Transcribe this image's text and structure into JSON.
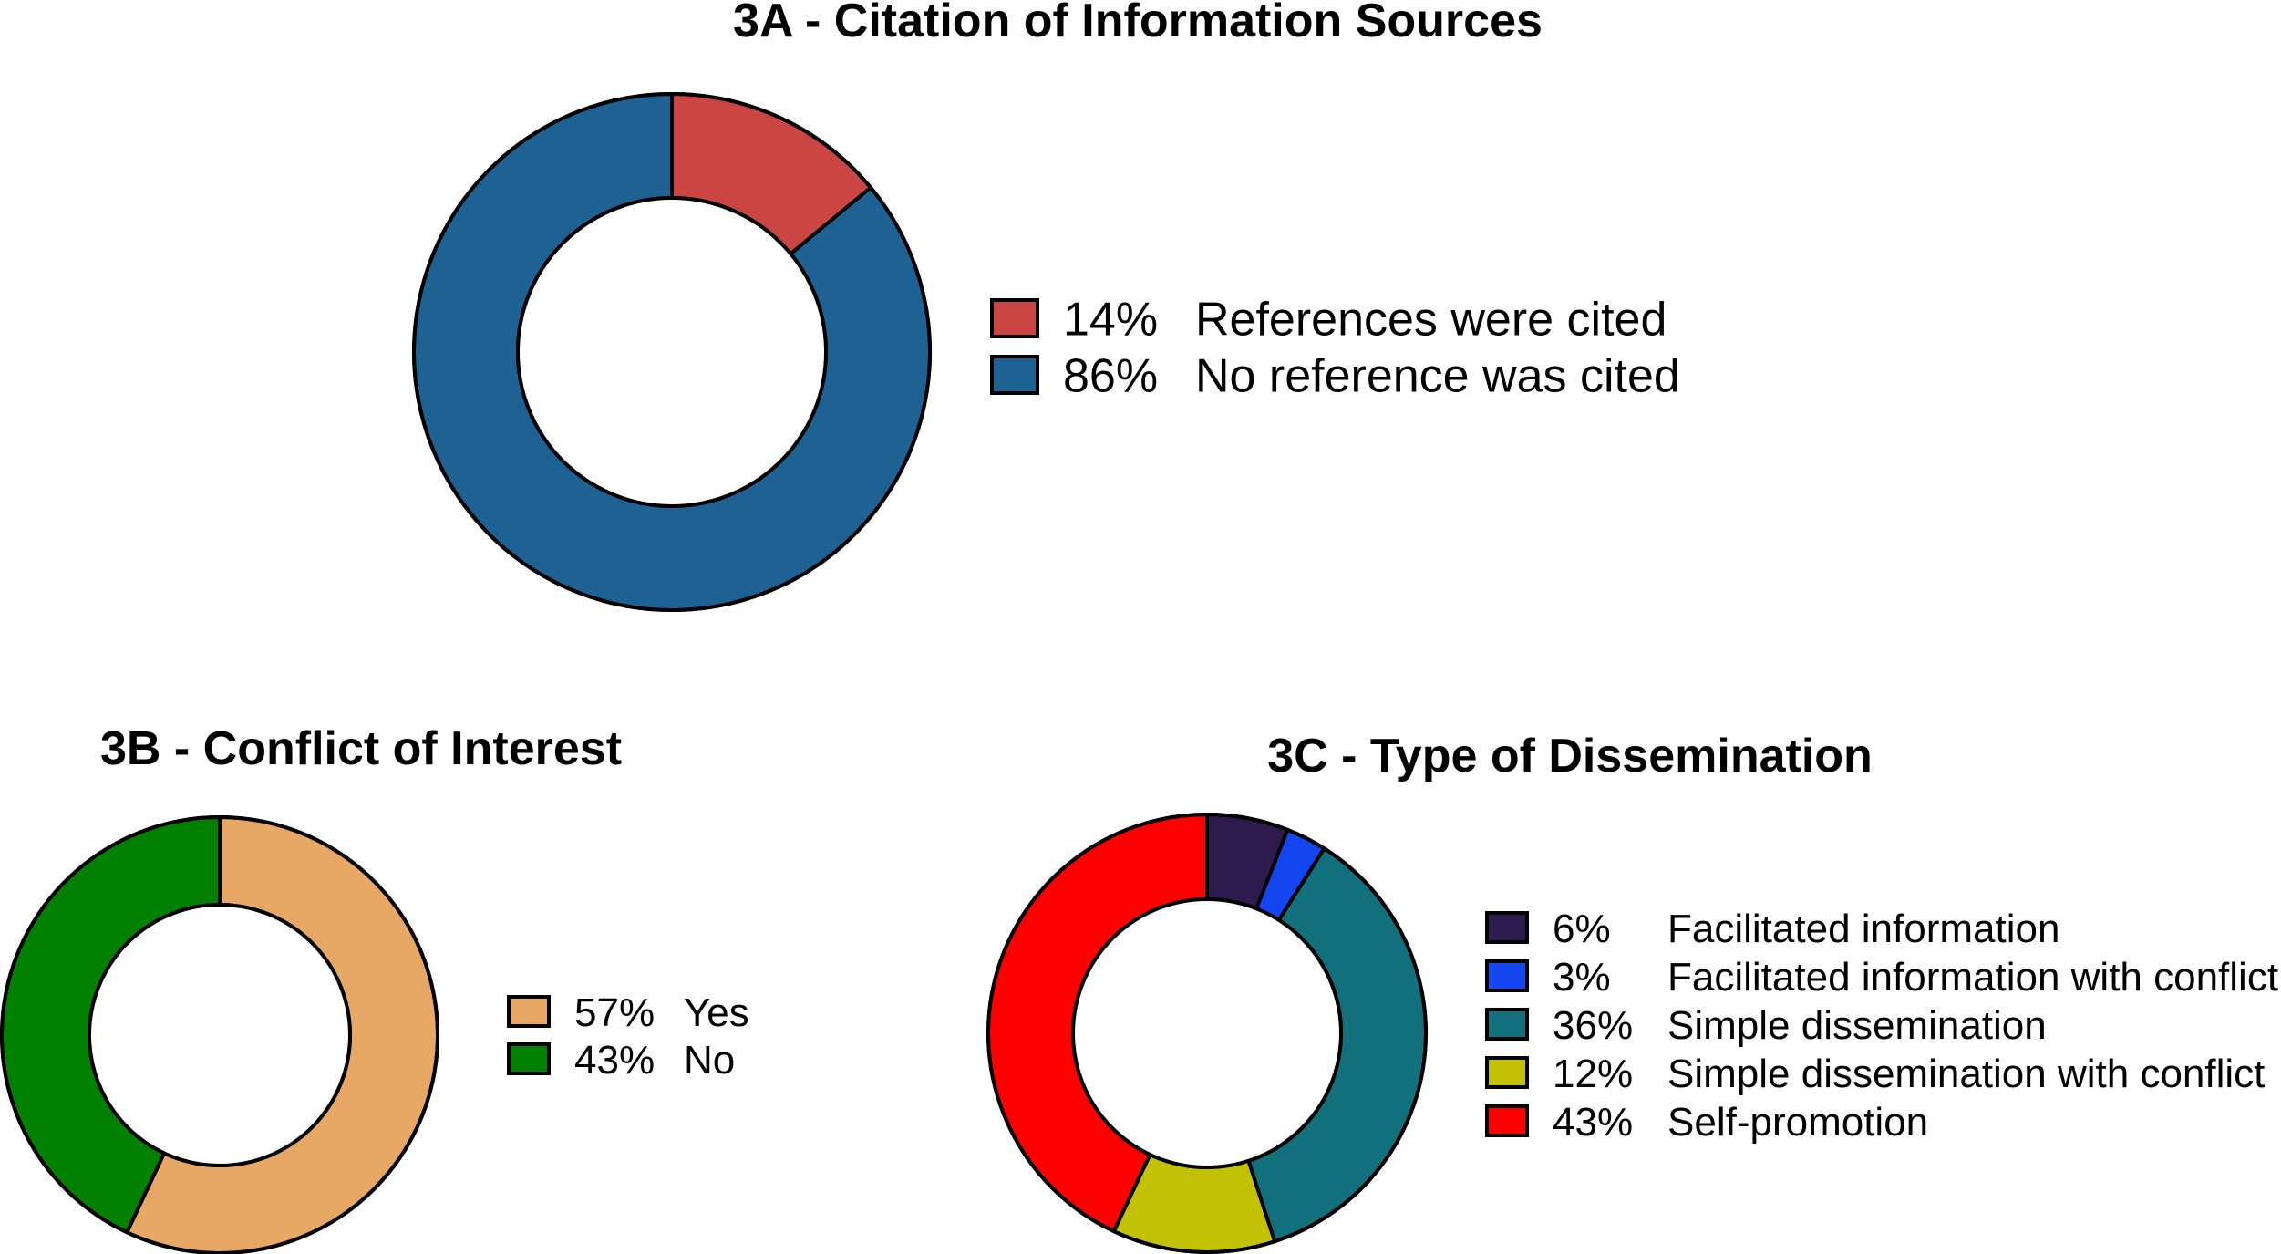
{
  "chart_data": [
    {
      "type": "pie",
      "title": "3A - Citation of Information Sources",
      "series": [
        {
          "label": "References were cited",
          "value": 14,
          "value_label": "14%",
          "color": "#cb4642"
        },
        {
          "label": "No reference was cited",
          "value": 86,
          "value_label": "86%",
          "color": "#1d6293"
        }
      ]
    },
    {
      "type": "pie",
      "title": "3B - Conflict of Interest",
      "series": [
        {
          "label": "Yes",
          "value": 57,
          "value_label": "57%",
          "color": "#e8a865"
        },
        {
          "label": "No",
          "value": 43,
          "value_label": "43%",
          "color": "#028002"
        }
      ]
    },
    {
      "type": "pie",
      "title": "3C - Type of Dissemination",
      "series": [
        {
          "label": "Facilitated information",
          "value": 6,
          "value_label": "6%",
          "color": "#2d1b4d"
        },
        {
          "label": "Facilitated information with conflict",
          "value": 3,
          "value_label": "3%",
          "color": "#1446f0"
        },
        {
          "label": "Simple dissemination",
          "value": 36,
          "value_label": "36%",
          "color": "#11707b"
        },
        {
          "label": "Simple dissemination with conflict",
          "value": 12,
          "value_label": "12%",
          "color": "#c3c103"
        },
        {
          "label": "Self-promotion",
          "value": 43,
          "value_label": "43%",
          "color": "#fe0000"
        }
      ]
    }
  ]
}
